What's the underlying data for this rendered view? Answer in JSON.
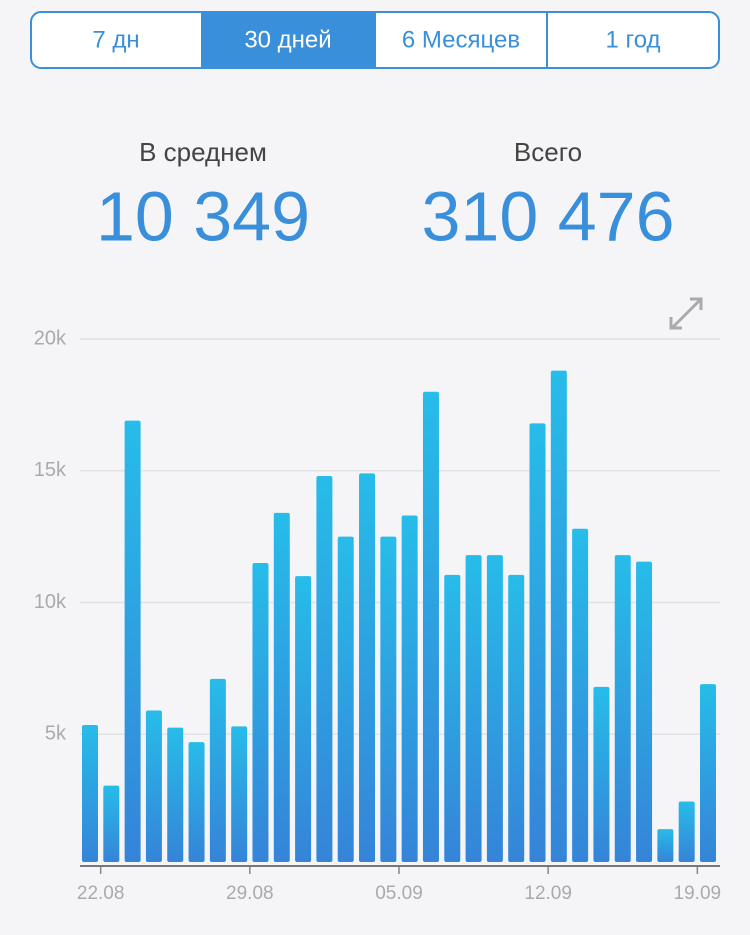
{
  "tabs": [
    "7 дн",
    "30 дней",
    "6 Месяцев",
    "1 год"
  ],
  "stats": [
    {
      "label": "В среднем",
      "value": "10 349"
    },
    {
      "label": "Всего",
      "value": "310 476"
    }
  ],
  "chart_data": {
    "type": "bar",
    "categories": [
      "22.08",
      null,
      null,
      null,
      null,
      null,
      null,
      "29.08",
      null,
      null,
      null,
      null,
      null,
      null,
      "05.09",
      null,
      null,
      null,
      null,
      null,
      null,
      "12.09",
      null,
      null,
      null,
      null,
      null,
      null,
      "19.09",
      null
    ],
    "values": [
      5350,
      3050,
      16900,
      5900,
      5250,
      4700,
      7100,
      5300,
      11500,
      13400,
      11000,
      14800,
      12500,
      14900,
      12500,
      13300,
      18000,
      11050,
      11800,
      11800,
      11050,
      16800,
      18800,
      12800,
      6800,
      11800,
      11550,
      1400,
      2450,
      6900
    ],
    "color": "#2f8fdc",
    "ylim": [
      0,
      20000
    ],
    "yticks": [
      {
        "value": 5000,
        "label": "5k"
      },
      {
        "value": 10000,
        "label": "10k"
      },
      {
        "value": 15000,
        "label": "15k"
      },
      {
        "value": 20000,
        "label": "20k"
      }
    ],
    "grid": true
  }
}
